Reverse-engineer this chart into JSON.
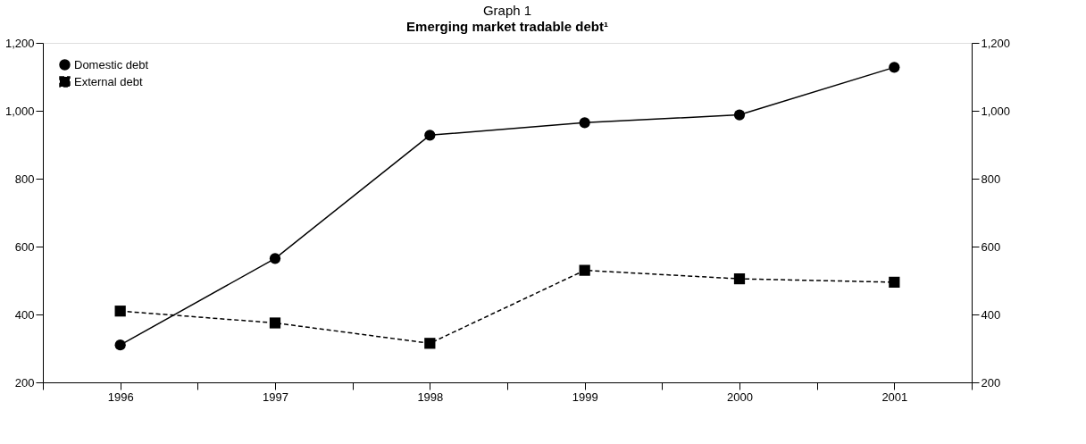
{
  "chart_data": {
    "type": "line",
    "title": "Graph 1",
    "subtitle": "Emerging market tradable debt¹",
    "x": [
      1996,
      1997,
      1998,
      1999,
      2000,
      2001
    ],
    "series": [
      {
        "name": "Domestic debt",
        "color": "#000000",
        "marker": "circle",
        "line_style": "solid",
        "values": [
          310,
          565,
          928,
          965,
          988,
          1128
        ]
      },
      {
        "name": "External debt",
        "color": "#000000",
        "marker": "square",
        "line_style": "dashed",
        "values": [
          410,
          375,
          315,
          530,
          505,
          495
        ]
      }
    ],
    "xlim": [
      1995.5,
      2001.5
    ],
    "xticks": [
      {
        "value": 1995.5,
        "label": null
      },
      1996,
      {
        "value": 1996.5,
        "label": null
      },
      1997,
      {
        "value": 1997.5,
        "label": null
      },
      1998,
      {
        "value": 1998.5,
        "label": null
      },
      1999,
      {
        "value": 1999.5,
        "label": null
      },
      2000,
      {
        "value": 2000.5,
        "label": null
      },
      2001,
      {
        "value": 2001.5,
        "label": null
      }
    ],
    "ylim": [
      200,
      1200
    ],
    "yticks": [
      {
        "value": 200,
        "label": "200"
      },
      {
        "value": 400,
        "label": "400"
      },
      {
        "value": 600,
        "label": "600"
      },
      {
        "value": 800,
        "label": "800"
      },
      {
        "value": 1000,
        "label": "1,000"
      },
      {
        "value": 1200,
        "label": "1,200"
      }
    ],
    "y2lim": [
      200,
      1200
    ],
    "y2ticks": [
      {
        "value": 200,
        "label": "200"
      },
      {
        "value": 400,
        "label": "400"
      },
      {
        "value": 600,
        "label": "600"
      },
      {
        "value": 800,
        "label": "800"
      },
      {
        "value": 1000,
        "label": "1,000"
      },
      {
        "value": 1200,
        "label": "1,200"
      }
    ],
    "legend": "top left",
    "grid": false
  }
}
